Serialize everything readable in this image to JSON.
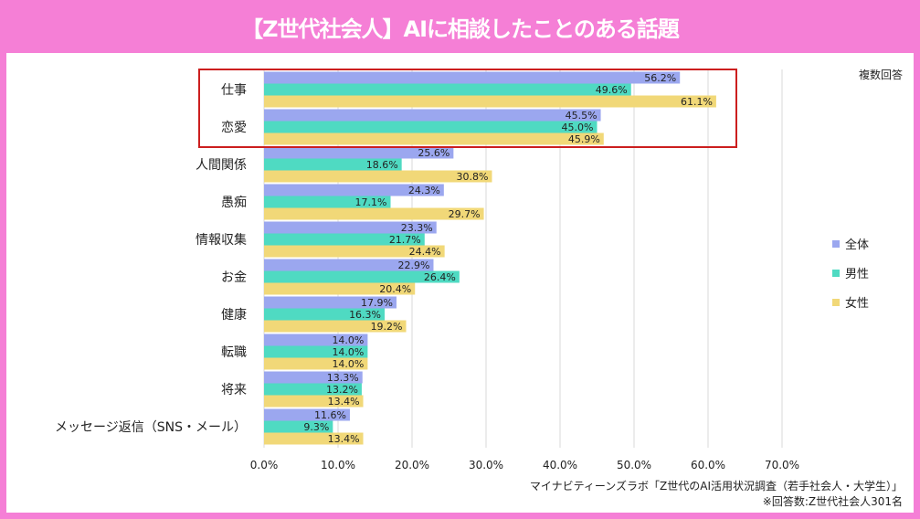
{
  "header": {
    "title": "【Z世代社会人】AIに相談したことのある話題"
  },
  "chart_data": {
    "type": "bar",
    "orientation": "horizontal",
    "title": "【Z世代社会人】AIに相談したことのある話題",
    "note": "複数回答",
    "categories": [
      "仕事",
      "恋愛",
      "人間関係",
      "愚痴",
      "情報収集",
      "お金",
      "健康",
      "転職",
      "将来",
      "メッセージ返信（SNS・メール）"
    ],
    "series": [
      {
        "name": "全体",
        "color": "#9ba7ef",
        "values": [
          56.2,
          45.5,
          25.6,
          24.3,
          23.3,
          22.9,
          17.9,
          14.0,
          13.3,
          11.6
        ]
      },
      {
        "name": "男性",
        "color": "#4fdac2",
        "values": [
          49.6,
          45.0,
          18.6,
          17.1,
          21.7,
          26.4,
          16.3,
          14.0,
          13.2,
          9.3
        ]
      },
      {
        "name": "女性",
        "color": "#f1d878",
        "values": [
          61.1,
          45.9,
          30.8,
          29.7,
          24.4,
          20.4,
          19.2,
          14.0,
          13.4,
          13.4
        ]
      }
    ],
    "xlim": [
      0,
      70
    ],
    "xticks": [
      "0.0%",
      "10.0%",
      "20.0%",
      "30.0%",
      "40.0%",
      "50.0%",
      "60.0%",
      "70.0%"
    ],
    "grid": true,
    "legend": "right",
    "highlight": {
      "categories": [
        "仕事",
        "恋愛"
      ],
      "color": "#cc1f1f"
    }
  },
  "footer": {
    "source": "マイナビティーンズラボ「Z世代のAI活用状況調査（若手社会人・大学生）」",
    "respondents": "※回答数:Z世代社会人301名"
  }
}
